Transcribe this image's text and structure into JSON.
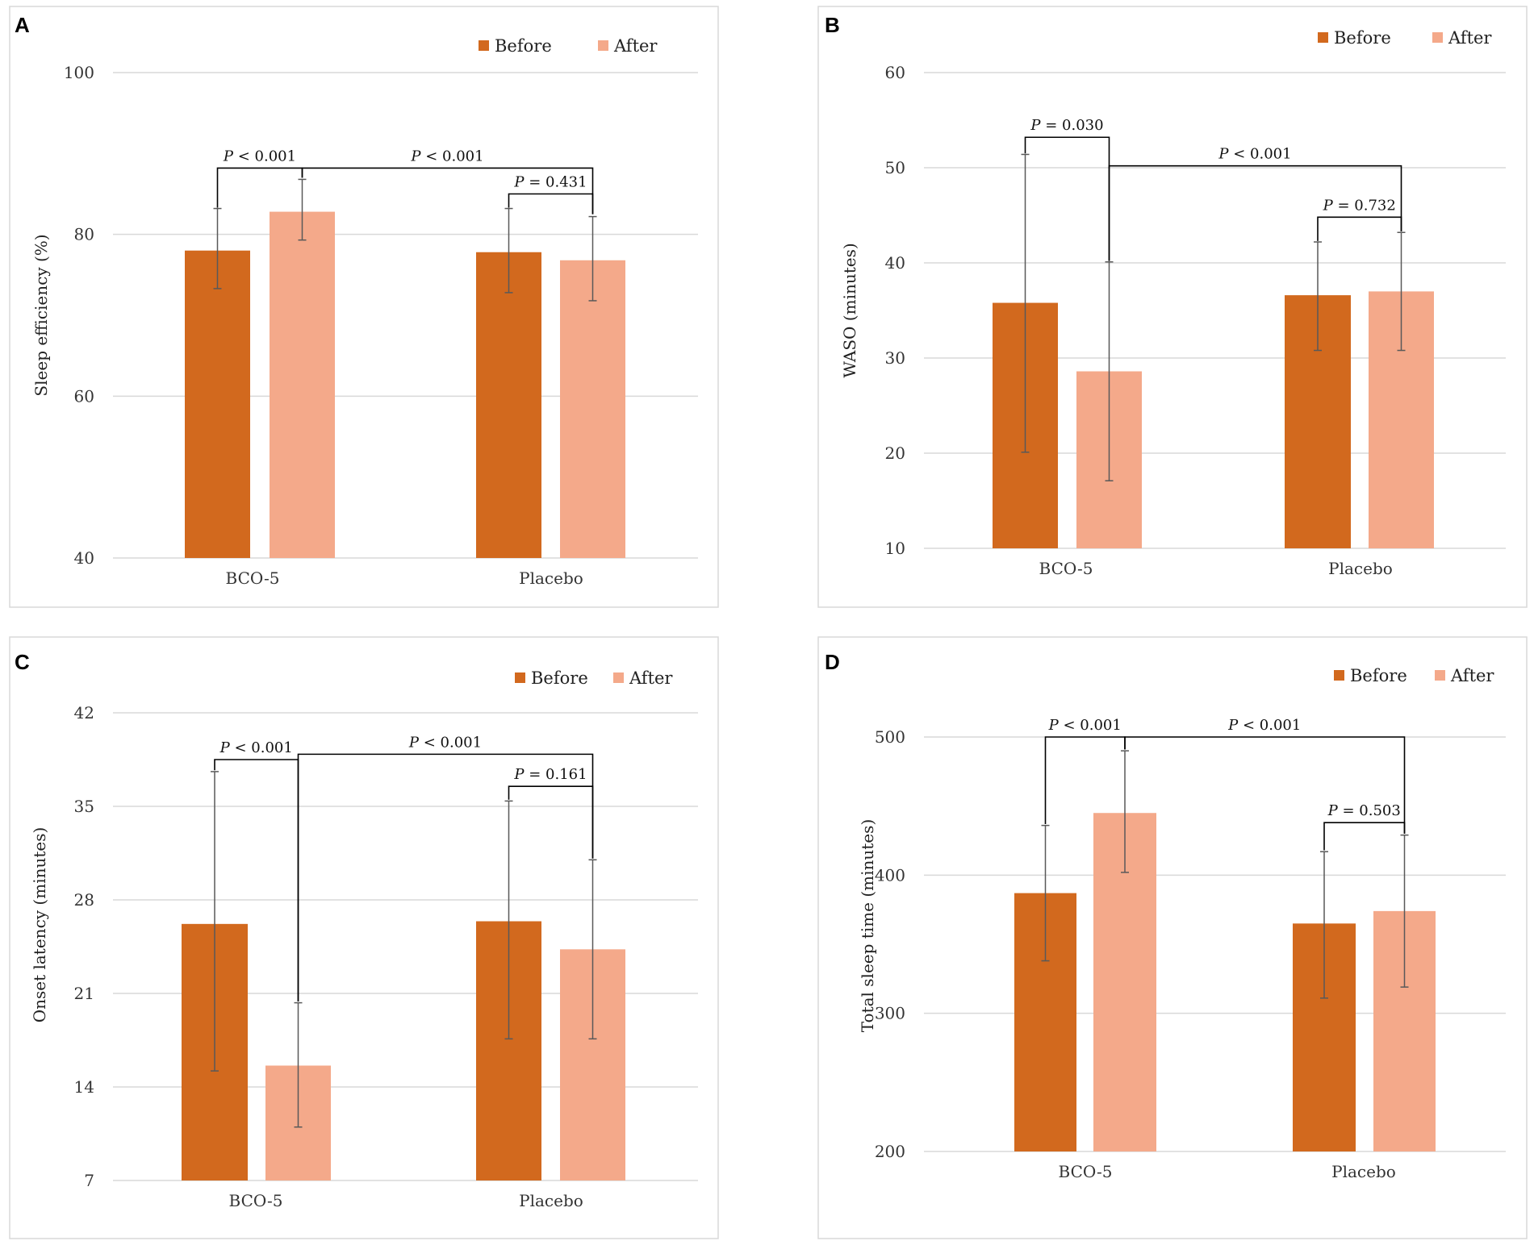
{
  "colors": {
    "before": "#D2691E",
    "after": "#F4A98A",
    "grid": "#D9D9D9",
    "error_bar": "#595959"
  },
  "chart_data": [
    {
      "panel": "A",
      "type": "bar",
      "ylabel": "Sleep efficiency (%)",
      "ylim": [
        40,
        100
      ],
      "yticks": [
        40,
        60,
        80,
        100
      ],
      "categories": [
        "BCO-5",
        "Placebo"
      ],
      "legend": [
        "Before",
        "After"
      ],
      "series": [
        {
          "name": "Before",
          "values": [
            78,
            77.8
          ],
          "error_low": [
            73.3,
            72.8
          ],
          "error_high": [
            83.2,
            83.2
          ]
        },
        {
          "name": "After",
          "values": [
            82.8,
            76.8
          ],
          "error_low": [
            79.3,
            71.8
          ],
          "error_high": [
            86.8,
            82.2
          ]
        }
      ],
      "annotations": [
        {
          "label_prefix": "P",
          "label_rest": " < 0.001",
          "left": [
            0,
            "Before"
          ],
          "right": [
            0,
            "After"
          ],
          "level": 88.2,
          "drop_left": 83.3,
          "drop_right": 87.0
        },
        {
          "label_prefix": "P",
          "label_rest": " < 0.001",
          "left": [
            0,
            "After"
          ],
          "right": [
            1,
            "After"
          ],
          "level": 88.2,
          "drop_left": 87.0,
          "drop_right": 82.5
        },
        {
          "label_prefix": "P",
          "label_rest": " = 0.431",
          "left": [
            1,
            "Before"
          ],
          "right": [
            1,
            "After"
          ],
          "level": 85.0,
          "drop_left": 83.3,
          "drop_right": 82.5
        }
      ]
    },
    {
      "panel": "B",
      "type": "bar",
      "ylabel": "WASO (minutes)",
      "ylim": [
        10,
        60
      ],
      "yticks": [
        10,
        20,
        30,
        40,
        50,
        60
      ],
      "categories": [
        "BCO-5",
        "Placebo"
      ],
      "legend": [
        "Before",
        "After"
      ],
      "series": [
        {
          "name": "Before",
          "values": [
            35.8,
            36.6
          ],
          "error_low": [
            20.1,
            30.8
          ],
          "error_high": [
            51.4,
            42.2
          ]
        },
        {
          "name": "After",
          "values": [
            28.6,
            37
          ],
          "error_low": [
            17.1,
            30.8
          ],
          "error_high": [
            40.1,
            43.2
          ]
        }
      ],
      "annotations": [
        {
          "label_prefix": "P",
          "label_rest": " = 0.030",
          "left": [
            0,
            "Before"
          ],
          "right": [
            0,
            "After"
          ],
          "level": 53.2,
          "drop_left": 51.5,
          "drop_right": 40.2
        },
        {
          "label_prefix": "P",
          "label_rest": " < 0.001",
          "left": [
            0,
            "After"
          ],
          "right": [
            1,
            "After"
          ],
          "level": 50.2,
          "drop_left": 40.2,
          "drop_right": 43.3
        },
        {
          "label_prefix": "P",
          "label_rest": " = 0.732",
          "left": [
            1,
            "Before"
          ],
          "right": [
            1,
            "After"
          ],
          "level": 44.8,
          "drop_left": 42.3,
          "drop_right": 43.3
        }
      ]
    },
    {
      "panel": "C",
      "type": "bar",
      "ylabel": "Onset latency (minutes)",
      "ylim": [
        7,
        42
      ],
      "yticks": [
        7,
        14,
        21,
        28,
        35,
        42
      ],
      "categories": [
        "BCO-5",
        "Placebo"
      ],
      "legend": [
        "Before",
        "After"
      ],
      "series": [
        {
          "name": "Before",
          "values": [
            26.2,
            26.4
          ],
          "error_low": [
            15.2,
            17.6
          ],
          "error_high": [
            37.6,
            35.4
          ]
        },
        {
          "name": "After",
          "values": [
            15.6,
            24.3
          ],
          "error_low": [
            11,
            17.6
          ],
          "error_high": [
            20.3,
            31
          ]
        }
      ],
      "annotations": [
        {
          "label_prefix": "P",
          "label_rest": " < 0.001",
          "left": [
            0,
            "Before"
          ],
          "right": [
            0,
            "After"
          ],
          "level": 38.5,
          "drop_left": 37.7,
          "drop_right": 20.4
        },
        {
          "label_prefix": "P",
          "label_rest": " < 0.001",
          "left": [
            0,
            "After"
          ],
          "right": [
            1,
            "After"
          ],
          "level": 38.9,
          "drop_left": 20.4,
          "drop_right": 31.1
        },
        {
          "label_prefix": "P",
          "label_rest": " = 0.161",
          "left": [
            1,
            "Before"
          ],
          "right": [
            1,
            "After"
          ],
          "level": 36.5,
          "drop_left": 35.5,
          "drop_right": 31.1
        }
      ]
    },
    {
      "panel": "D",
      "type": "bar",
      "ylabel": "Total sleep time (minutes)",
      "ylim": [
        200,
        500
      ],
      "yticks": [
        200,
        300,
        400,
        500
      ],
      "categories": [
        "BCO-5",
        "Placebo"
      ],
      "legend": [
        "Before",
        "After"
      ],
      "series": [
        {
          "name": "Before",
          "values": [
            387,
            365
          ],
          "error_low": [
            338,
            311
          ],
          "error_high": [
            436,
            417
          ]
        },
        {
          "name": "After",
          "values": [
            445,
            374
          ],
          "error_low": [
            402,
            319
          ],
          "error_high": [
            490,
            429
          ]
        }
      ],
      "annotations": [
        {
          "label_prefix": "P",
          "label_rest": " < 0.001",
          "left": [
            0,
            "Before"
          ],
          "right": [
            0,
            "After"
          ],
          "level": 500,
          "drop_left": 437,
          "drop_right": 491
        },
        {
          "label_prefix": "P",
          "label_rest": " < 0.001",
          "left": [
            0,
            "After"
          ],
          "right": [
            1,
            "After"
          ],
          "level": 500,
          "drop_left": 491,
          "drop_right": 430
        },
        {
          "label_prefix": "P",
          "label_rest": " = 0.503",
          "left": [
            1,
            "Before"
          ],
          "right": [
            1,
            "After"
          ],
          "level": 438,
          "drop_left": 418,
          "drop_right": 430
        }
      ]
    }
  ]
}
